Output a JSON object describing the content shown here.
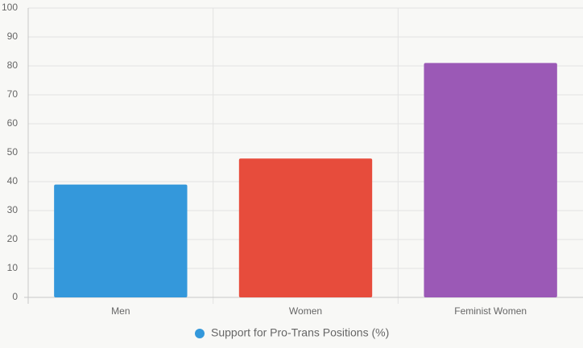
{
  "chart_data": {
    "type": "bar",
    "categories": [
      "Men",
      "Women",
      "Feminist Women"
    ],
    "series": [
      {
        "name": "Support for Pro-Trans Positions (%)",
        "color": "#3498db",
        "values": [
          39,
          48,
          81
        ],
        "colors": [
          "#3498db",
          "#e74c3c",
          "#9b59b6"
        ]
      }
    ],
    "ylim": [
      0,
      100
    ],
    "yticks": [
      0,
      10,
      20,
      30,
      40,
      50,
      60,
      70,
      80,
      90,
      100
    ],
    "grid": true
  }
}
